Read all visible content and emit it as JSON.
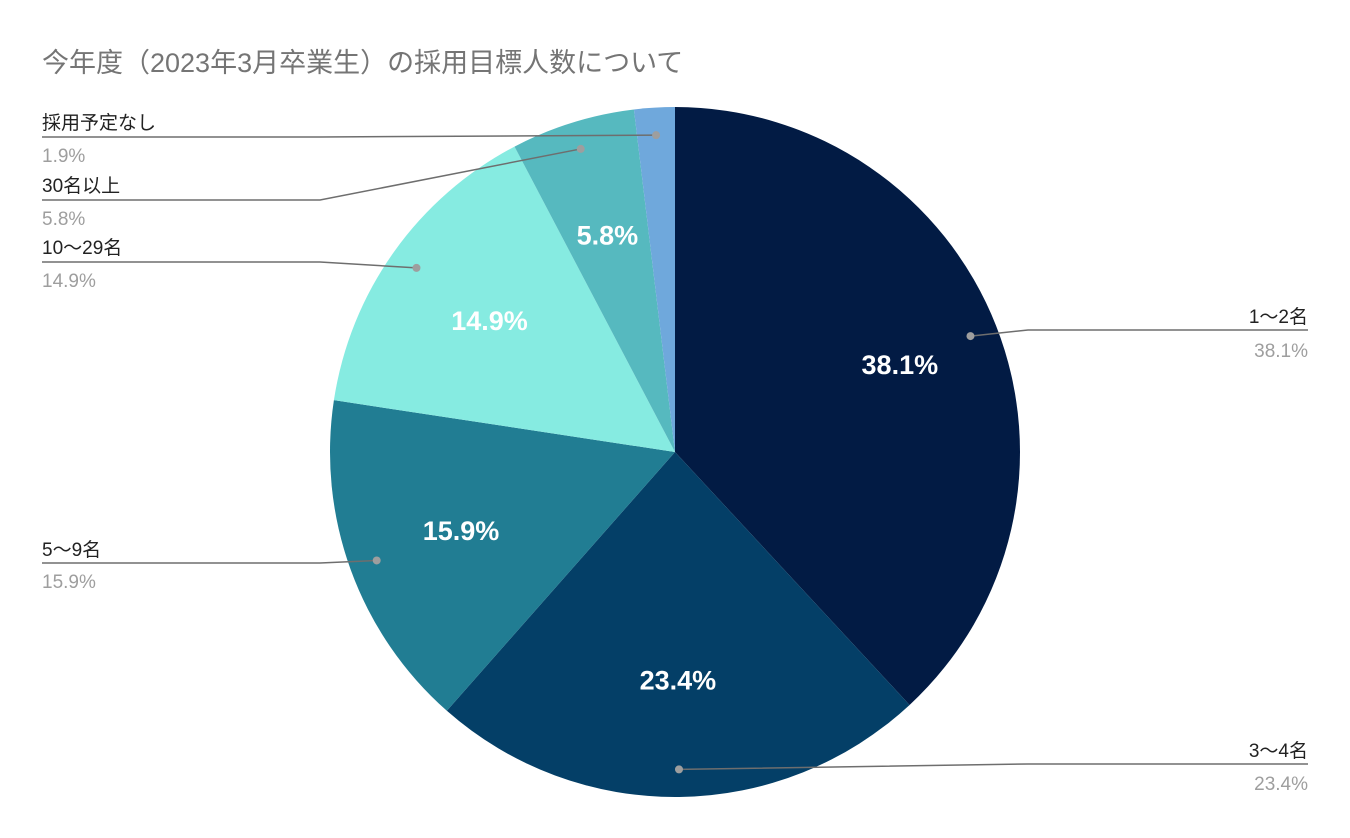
{
  "chart_data": {
    "type": "pie",
    "title": "今年度（2023年3月卒業生）の採用目標人数について",
    "slices": [
      {
        "label": "1〜2名",
        "value": 38.1,
        "display": "38.1%",
        "color": "#021b44"
      },
      {
        "label": "3〜4名",
        "value": 23.4,
        "display": "23.4%",
        "color": "#043f67"
      },
      {
        "label": "5〜9名",
        "value": 15.9,
        "display": "15.9%",
        "color": "#217d93"
      },
      {
        "label": "10〜29名",
        "value": 14.9,
        "display": "14.9%",
        "color": "#86ebe1"
      },
      {
        "label": "30名以上",
        "value": 5.8,
        "display": "5.8%",
        "color": "#56b9bf"
      },
      {
        "label": "採用予定なし",
        "value": 1.9,
        "display": "1.9%",
        "color": "#6fa8dc"
      }
    ],
    "legend": "callouts"
  }
}
